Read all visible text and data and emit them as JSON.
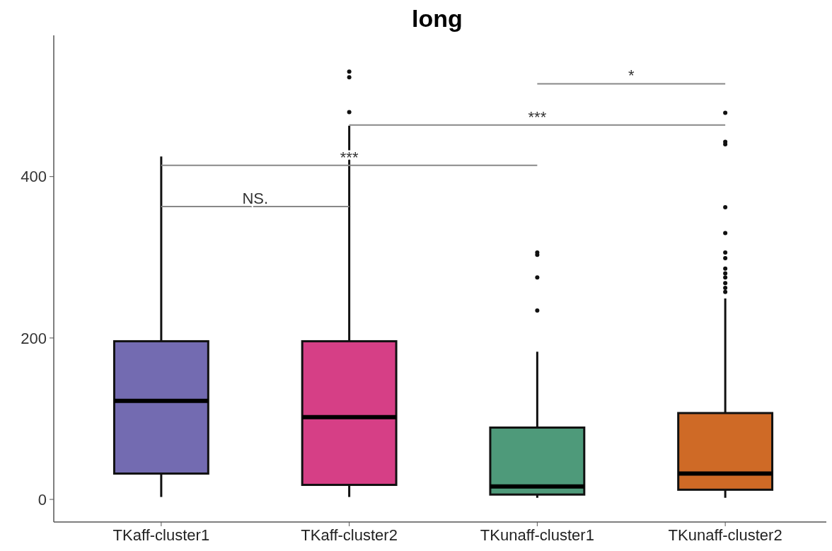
{
  "chart_data": {
    "type": "box",
    "title": "long",
    "categories": [
      "TKaff-cluster1",
      "TKaff-cluster2",
      "TKunaff-cluster1",
      "TKunaff-cluster2"
    ],
    "colors": [
      "#736bb1",
      "#d63f86",
      "#4e9a7a",
      "#cf6a26"
    ],
    "boxes": [
      {
        "low": 3,
        "q1": 32,
        "median": 122,
        "q3": 196,
        "high": 425
      },
      {
        "low": 3,
        "q1": 18,
        "median": 102,
        "q3": 196,
        "high": 463,
        "outliers": [
          480,
          523,
          530
        ]
      },
      {
        "low": 2,
        "q1": 6,
        "median": 16,
        "q3": 89,
        "high": 183,
        "outliers": [
          234,
          275,
          303,
          306
        ]
      },
      {
        "low": 2,
        "q1": 12,
        "median": 32,
        "q3": 107,
        "high": 249,
        "outliers": [
          257,
          262,
          268,
          275,
          280,
          286,
          299,
          306,
          330,
          362,
          440,
          443,
          479
        ]
      }
    ],
    "ylim": [
      -28,
      575
    ],
    "yticks": [
      0,
      200,
      400
    ],
    "annotations": [
      "NS.",
      "***",
      "***",
      "*"
    ]
  }
}
